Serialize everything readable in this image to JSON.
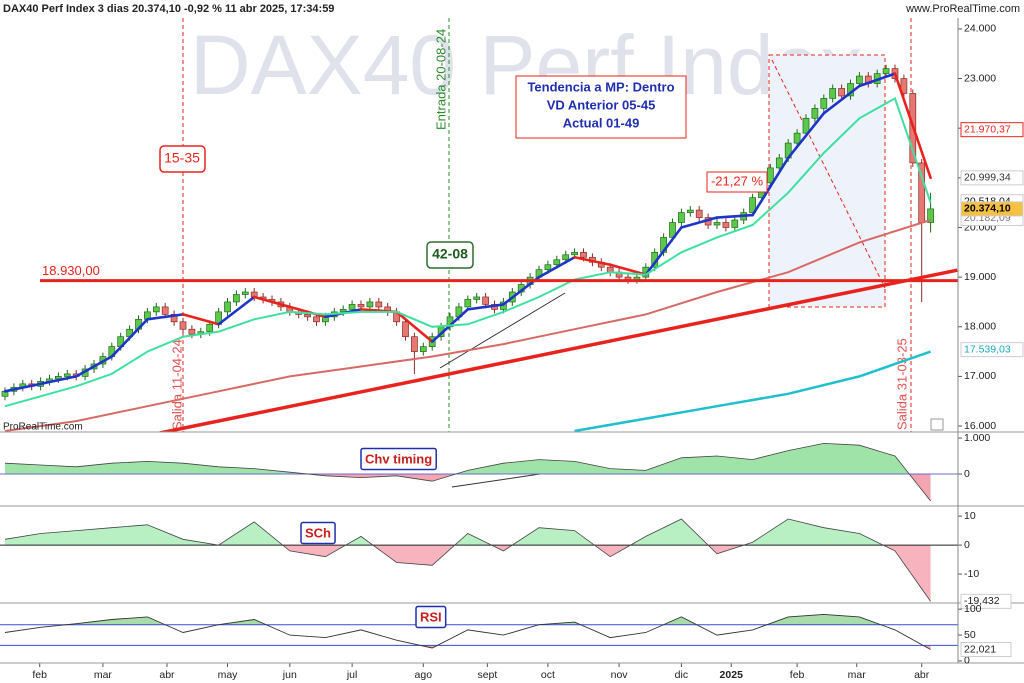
{
  "header": {
    "title": "DAX40 Perf Index 3 dias 20.374,10 -0,92 % 11 abr 2025, 17:34:59",
    "site": "www.ProRealTime.com",
    "watermark": "DAX40 Perf Index",
    "footer": "ProRealTime.com"
  },
  "chart_data": [
    {
      "type": "candlestick",
      "up_color": "#5cc84a",
      "down_color": "#e57873",
      "up_border": "#1d6b1a",
      "down_border": "#8a2a26",
      "ylim": [
        15880,
        24220
      ],
      "yticks": [
        {
          "value": 24000,
          "label": "24.000"
        },
        {
          "value": 23000,
          "label": "23.000"
        },
        {
          "value": 22000,
          "label": "22.000"
        },
        {
          "value": 21000,
          "label": "21.000"
        },
        {
          "value": 20000,
          "label": "20.000"
        },
        {
          "value": 19000,
          "label": "19.000"
        },
        {
          "value": 18000,
          "label": "18.000"
        },
        {
          "value": 17000,
          "label": "17.000"
        },
        {
          "value": 16000,
          "label": "16.000"
        }
      ],
      "xticks": [
        {
          "value": 3.9,
          "label": "feb"
        },
        {
          "value": 11,
          "label": "mar"
        },
        {
          "value": 18.2,
          "label": "abr"
        },
        {
          "value": 25,
          "label": "may"
        },
        {
          "value": 32,
          "label": "jun"
        },
        {
          "value": 39,
          "label": "jul"
        },
        {
          "value": 47,
          "label": "ago"
        },
        {
          "value": 54.2,
          "label": "sept"
        },
        {
          "value": 61,
          "label": "oct"
        },
        {
          "value": 69,
          "label": "nov"
        },
        {
          "value": 76,
          "label": "dic"
        },
        {
          "value": 81.6,
          "label": "2025"
        },
        {
          "value": 89,
          "label": "feb"
        },
        {
          "value": 95.7,
          "label": "mar"
        },
        {
          "value": 103,
          "label": "abr"
        }
      ],
      "open": [
        16600,
        16700,
        16780,
        16850,
        16800,
        16900,
        16950,
        17000,
        17050,
        17000,
        17150,
        17250,
        17400,
        17600,
        17800,
        17950,
        18150,
        18300,
        18400,
        18250,
        18100,
        17950,
        17850,
        17900,
        18050,
        18300,
        18500,
        18650,
        18700,
        18600,
        18550,
        18500,
        18400,
        18300,
        18250,
        18200,
        18100,
        18200,
        18300,
        18350,
        18450,
        18400,
        18500,
        18400,
        18300,
        18100,
        17800,
        17500,
        17600,
        17800,
        18000,
        18200,
        18400,
        18550,
        18600,
        18450,
        18350,
        18500,
        18700,
        18850,
        19000,
        19150,
        19250,
        19350,
        19450,
        19500,
        19400,
        19300,
        19200,
        19100,
        19000,
        18950,
        19000,
        19200,
        19500,
        19800,
        20100,
        20300,
        20350,
        20200,
        20050,
        20100,
        20000,
        20150,
        20300,
        20600,
        20900,
        21200,
        21400,
        21700,
        21900,
        22200,
        22400,
        22600,
        22800,
        22650,
        22900,
        23050,
        22900,
        23100,
        23200,
        23000,
        22700,
        21300,
        20100
      ],
      "high": [
        16780,
        16860,
        16930,
        16930,
        16980,
        17030,
        17080,
        17130,
        17130,
        17230,
        17330,
        17480,
        17680,
        17880,
        18030,
        18230,
        18380,
        18480,
        18480,
        18330,
        18180,
        18030,
        17980,
        18130,
        18380,
        18580,
        18730,
        18780,
        18780,
        18680,
        18630,
        18580,
        18480,
        18380,
        18330,
        18280,
        18280,
        18380,
        18430,
        18530,
        18530,
        18580,
        18580,
        18480,
        18380,
        18180,
        17880,
        17680,
        17880,
        18080,
        18280,
        18480,
        18630,
        18680,
        18680,
        18530,
        18580,
        18780,
        18930,
        19080,
        19230,
        19330,
        19430,
        19530,
        19580,
        19580,
        19480,
        19380,
        19280,
        19180,
        19080,
        19080,
        19280,
        19580,
        19880,
        20180,
        20380,
        20430,
        20430,
        20280,
        20180,
        20180,
        20230,
        20380,
        20680,
        20980,
        21280,
        21480,
        21780,
        21980,
        22280,
        22480,
        22680,
        22880,
        22880,
        22980,
        23130,
        23130,
        23180,
        23280,
        23280,
        23080,
        22780,
        21380,
        20700
      ],
      "low": [
        16520,
        16620,
        16700,
        16720,
        16720,
        16820,
        16870,
        16920,
        16920,
        16920,
        17070,
        17170,
        17320,
        17520,
        17720,
        17870,
        18070,
        18220,
        18170,
        18020,
        17870,
        17770,
        17770,
        17820,
        17970,
        18220,
        18420,
        18570,
        18520,
        18470,
        18420,
        18320,
        18220,
        18170,
        18120,
        18020,
        18020,
        18120,
        18220,
        18270,
        18320,
        18320,
        18320,
        18220,
        18020,
        17720,
        17050,
        17420,
        17520,
        17720,
        17920,
        18120,
        18320,
        18470,
        18370,
        18270,
        18270,
        18420,
        18620,
        18770,
        18920,
        19070,
        19170,
        19270,
        19370,
        19320,
        19220,
        19120,
        19020,
        18920,
        18870,
        18870,
        18920,
        19120,
        19420,
        19720,
        20020,
        20220,
        20120,
        19970,
        19970,
        19920,
        19920,
        20070,
        20220,
        20520,
        20820,
        21120,
        21320,
        21620,
        21820,
        22120,
        22320,
        22520,
        22570,
        22570,
        22820,
        22820,
        22820,
        23020,
        22920,
        22620,
        21220,
        18500,
        19900
      ],
      "close": [
        16700,
        16780,
        16850,
        16800,
        16900,
        16950,
        17000,
        17050,
        17000,
        17150,
        17250,
        17400,
        17600,
        17800,
        17950,
        18150,
        18300,
        18400,
        18250,
        18100,
        17950,
        17850,
        17900,
        18050,
        18300,
        18500,
        18650,
        18700,
        18600,
        18550,
        18500,
        18400,
        18300,
        18250,
        18200,
        18100,
        18200,
        18300,
        18350,
        18450,
        18400,
        18500,
        18400,
        18300,
        18100,
        17800,
        17500,
        17600,
        17800,
        18000,
        18200,
        18400,
        18550,
        18600,
        18450,
        18350,
        18500,
        18700,
        18850,
        19000,
        19150,
        19250,
        19350,
        19450,
        19500,
        19400,
        19300,
        19200,
        19100,
        19000,
        18950,
        19000,
        19200,
        19500,
        19800,
        20100,
        20300,
        20350,
        20200,
        20050,
        20100,
        20000,
        20150,
        20300,
        20600,
        20900,
        21200,
        21400,
        21700,
        21900,
        22200,
        22400,
        22600,
        22800,
        22650,
        22900,
        23050,
        22900,
        23100,
        23200,
        23000,
        22700,
        21300,
        20100,
        20374.1
      ],
      "series": [
        {
          "color": "#1f35c8",
          "down_color": "#e8231e",
          "width": 2.6,
          "x": [
            0,
            4,
            8,
            12,
            16,
            20,
            24,
            28,
            32,
            36,
            40,
            44,
            48,
            52,
            56,
            60,
            64,
            68,
            72,
            76,
            80,
            84,
            88,
            92,
            96,
            100,
            104
          ],
          "values": [
            16700,
            16850,
            17000,
            17400,
            18150,
            18250,
            18050,
            18600,
            18400,
            18200,
            18350,
            18300,
            17700,
            18350,
            18450,
            19000,
            19400,
            19250,
            19050,
            20000,
            20200,
            20250,
            21400,
            22300,
            22850,
            23100,
            21000
          ]
        },
        {
          "color": "#3ee0a0",
          "width": 2,
          "x": [
            0,
            4,
            8,
            12,
            16,
            20,
            24,
            28,
            32,
            36,
            40,
            44,
            48,
            52,
            56,
            60,
            64,
            68,
            72,
            76,
            80,
            84,
            88,
            92,
            96,
            100,
            104
          ],
          "values": [
            16400,
            16600,
            16800,
            17050,
            17500,
            17800,
            17900,
            18150,
            18300,
            18250,
            18300,
            18300,
            18000,
            18050,
            18300,
            18600,
            18950,
            19100,
            19050,
            19500,
            19800,
            20050,
            20700,
            21500,
            22200,
            22600,
            20500
          ]
        },
        {
          "color": "#d86a66",
          "width": 2,
          "x": [
            0,
            8,
            16,
            24,
            32,
            40,
            48,
            56,
            64,
            72,
            80,
            88,
            96,
            104
          ],
          "values": [
            15900,
            16100,
            16400,
            16700,
            17000,
            17200,
            17400,
            17650,
            17950,
            18250,
            18700,
            19100,
            19700,
            20150
          ]
        },
        {
          "color": "#1fbfcf",
          "width": 2.5,
          "x": [
            64,
            72,
            80,
            88,
            96,
            104
          ],
          "values": [
            15900,
            16150,
            16400,
            16650,
            17000,
            17500
          ]
        }
      ],
      "hline": {
        "value": 18930,
        "label": "18.930,00",
        "color": "#e8231e"
      },
      "trendline": {
        "x": [
          17.4,
          107
        ],
        "y": [
          15860,
          19140
        ],
        "color": "#e8231e"
      },
      "price_tags": [
        {
          "value": 21970.37,
          "label": "21.970,37",
          "color": "#e8231e"
        },
        {
          "value": 20999.34,
          "label": "20.999,34",
          "color": "#333"
        },
        {
          "value": 20518.04,
          "label": "20.518,04",
          "color": "#111"
        },
        {
          "value": 20182.09,
          "label": "20.182,09",
          "color": "#777"
        },
        {
          "value": 20374.1,
          "label": "20.374,10",
          "color": "#000",
          "highlight": true
        },
        {
          "value": 17539.03,
          "label": "17.539,03",
          "color": "#1aa8c0"
        }
      ],
      "annotations": [
        "15-35",
        "42-08",
        "-21,27 %",
        "Tendencia a MP: Dentro",
        "VD Anterior 05-45",
        "Actual 01-49",
        "Salida 11-04-24",
        "Entrada 20-08-24",
        "Salida 31-03-25"
      ]
    },
    {
      "type": "area",
      "title": "Chv timing",
      "baseline": 0,
      "up_color": "#9fe3a8",
      "down_color": "#f3a6b2",
      "ylim": [
        -0.89,
        1.14
      ],
      "yticks": [
        {
          "value": 1,
          "label": "1.000"
        },
        0
      ],
      "x": [
        0,
        4,
        8,
        12,
        16,
        20,
        24,
        28,
        32,
        36,
        40,
        44,
        48,
        52,
        56,
        60,
        64,
        68,
        72,
        76,
        80,
        84,
        88,
        92,
        96,
        100,
        104
      ],
      "values": [
        0.3,
        0.25,
        0.2,
        0.3,
        0.35,
        0.3,
        0.2,
        0.15,
        0.05,
        -0.05,
        -0.1,
        -0.05,
        -0.2,
        0.1,
        0.3,
        0.4,
        0.35,
        0.15,
        0.1,
        0.45,
        0.5,
        0.4,
        0.65,
        0.85,
        0.8,
        0.5,
        -0.75
      ]
    },
    {
      "type": "area",
      "title": "SCh",
      "baseline": 0,
      "up_color": "#b8f0c4",
      "down_color": "#f7b3be",
      "ylim": [
        -20,
        12.8
      ],
      "yticks": [
        10,
        0,
        -10
      ],
      "x": [
        0,
        4,
        8,
        12,
        16,
        20,
        24,
        28,
        32,
        36,
        40,
        44,
        48,
        52,
        56,
        60,
        64,
        68,
        72,
        76,
        80,
        84,
        88,
        92,
        96,
        100,
        104
      ],
      "values": [
        2,
        4,
        5,
        6,
        7,
        2,
        0,
        8,
        -2,
        -4,
        3,
        -6,
        -7,
        4,
        -2,
        6,
        5,
        -4,
        3,
        9,
        -3,
        1,
        9,
        6,
        4,
        -2,
        -19.432
      ],
      "last_label": "-19,432"
    },
    {
      "type": "line",
      "title": "RSI",
      "levels": [
        70,
        30
      ],
      "up_color": "#a8dcaa",
      "down_color": "#f3a6b2",
      "level_color": "#3b4bd0",
      "ylim": [
        -4,
        110
      ],
      "yticks": [
        100,
        50,
        0
      ],
      "x": [
        0,
        4,
        8,
        12,
        16,
        20,
        24,
        28,
        32,
        36,
        40,
        44,
        48,
        52,
        56,
        60,
        64,
        68,
        72,
        76,
        80,
        84,
        88,
        92,
        96,
        100,
        104
      ],
      "values": [
        55,
        65,
        72,
        80,
        85,
        55,
        70,
        80,
        50,
        45,
        60,
        40,
        25,
        60,
        50,
        70,
        75,
        45,
        55,
        85,
        50,
        60,
        85,
        90,
        85,
        60,
        22.021
      ],
      "last_label": "22,021"
    }
  ]
}
